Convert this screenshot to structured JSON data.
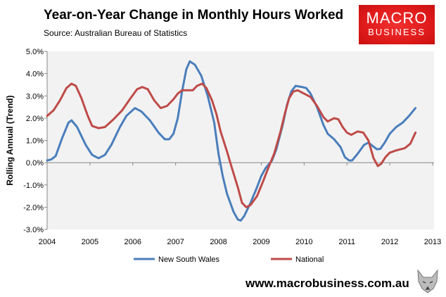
{
  "header": {
    "title": "Year-on-Year  Change in Monthly Hours Worked",
    "source": "Source: Australian Bureau of Statistics"
  },
  "logo": {
    "line1": "MACRO",
    "line2": "BUSINESS",
    "color": "#e01b1b"
  },
  "footer": {
    "url": "www.macrobusiness.com.au",
    "icon": "wolf-logo-icon"
  },
  "chart_data": {
    "type": "line",
    "title": "Year-on-Year  Change in Monthly Hours Worked",
    "xlabel": "",
    "ylabel": "Rolling Annual (Trend)",
    "xlim": [
      2004,
      2013
    ],
    "ylim": [
      -3,
      5
    ],
    "xticks": [
      "2004",
      "2005",
      "2006",
      "2007",
      "2008",
      "2009",
      "2010",
      "2011",
      "2012",
      "2013"
    ],
    "yticks": [
      "-3.0%",
      "-2.0%",
      "-1.0%",
      "0.0%",
      "1.0%",
      "2.0%",
      "3.0%",
      "4.0%",
      "5.0%"
    ],
    "grid": false,
    "legend": "bottom",
    "series": [
      {
        "name": "New South Wales",
        "color": "#4a7ebb",
        "points": [
          [
            2004.0,
            0.1
          ],
          [
            2004.1,
            0.15
          ],
          [
            2004.2,
            0.3
          ],
          [
            2004.35,
            1.1
          ],
          [
            2004.5,
            1.8
          ],
          [
            2004.57,
            1.9
          ],
          [
            2004.7,
            1.6
          ],
          [
            2004.9,
            0.8
          ],
          [
            2005.05,
            0.35
          ],
          [
            2005.2,
            0.2
          ],
          [
            2005.35,
            0.35
          ],
          [
            2005.5,
            0.8
          ],
          [
            2005.7,
            1.6
          ],
          [
            2005.85,
            2.1
          ],
          [
            2006.05,
            2.45
          ],
          [
            2006.2,
            2.3
          ],
          [
            2006.4,
            1.9
          ],
          [
            2006.6,
            1.35
          ],
          [
            2006.75,
            1.05
          ],
          [
            2006.85,
            1.05
          ],
          [
            2006.95,
            1.3
          ],
          [
            2007.05,
            2.0
          ],
          [
            2007.15,
            3.2
          ],
          [
            2007.25,
            4.2
          ],
          [
            2007.33,
            4.55
          ],
          [
            2007.45,
            4.4
          ],
          [
            2007.6,
            3.9
          ],
          [
            2007.75,
            3.0
          ],
          [
            2007.9,
            1.8
          ],
          [
            2008.0,
            0.4
          ],
          [
            2008.1,
            -0.6
          ],
          [
            2008.2,
            -1.4
          ],
          [
            2008.35,
            -2.2
          ],
          [
            2008.45,
            -2.55
          ],
          [
            2008.52,
            -2.6
          ],
          [
            2008.6,
            -2.4
          ],
          [
            2008.75,
            -1.8
          ],
          [
            2008.9,
            -1.1
          ],
          [
            2009.0,
            -0.6
          ],
          [
            2009.1,
            -0.25
          ],
          [
            2009.25,
            0.1
          ],
          [
            2009.35,
            0.6
          ],
          [
            2009.5,
            1.7
          ],
          [
            2009.6,
            2.6
          ],
          [
            2009.7,
            3.2
          ],
          [
            2009.8,
            3.45
          ],
          [
            2009.95,
            3.4
          ],
          [
            2010.05,
            3.35
          ],
          [
            2010.15,
            3.1
          ],
          [
            2010.3,
            2.5
          ],
          [
            2010.45,
            1.7
          ],
          [
            2010.55,
            1.3
          ],
          [
            2010.7,
            1.05
          ],
          [
            2010.85,
            0.7
          ],
          [
            2010.95,
            0.25
          ],
          [
            2011.05,
            0.1
          ],
          [
            2011.12,
            0.1
          ],
          [
            2011.25,
            0.4
          ],
          [
            2011.4,
            0.8
          ],
          [
            2011.5,
            0.9
          ],
          [
            2011.6,
            0.75
          ],
          [
            2011.7,
            0.6
          ],
          [
            2011.78,
            0.62
          ],
          [
            2011.88,
            0.9
          ],
          [
            2012.0,
            1.3
          ],
          [
            2012.15,
            1.6
          ],
          [
            2012.3,
            1.8
          ],
          [
            2012.45,
            2.1
          ],
          [
            2012.6,
            2.45
          ]
        ]
      },
      {
        "name": "National",
        "color": "#be4b48",
        "points": [
          [
            2004.0,
            2.1
          ],
          [
            2004.15,
            2.35
          ],
          [
            2004.3,
            2.8
          ],
          [
            2004.45,
            3.35
          ],
          [
            2004.57,
            3.55
          ],
          [
            2004.67,
            3.45
          ],
          [
            2004.8,
            2.9
          ],
          [
            2004.95,
            2.1
          ],
          [
            2005.05,
            1.65
          ],
          [
            2005.2,
            1.55
          ],
          [
            2005.35,
            1.6
          ],
          [
            2005.55,
            1.95
          ],
          [
            2005.75,
            2.35
          ],
          [
            2005.95,
            2.9
          ],
          [
            2006.1,
            3.3
          ],
          [
            2006.22,
            3.4
          ],
          [
            2006.35,
            3.3
          ],
          [
            2006.5,
            2.8
          ],
          [
            2006.65,
            2.45
          ],
          [
            2006.8,
            2.55
          ],
          [
            2006.95,
            2.85
          ],
          [
            2007.05,
            3.1
          ],
          [
            2007.15,
            3.25
          ],
          [
            2007.4,
            3.25
          ],
          [
            2007.5,
            3.45
          ],
          [
            2007.62,
            3.55
          ],
          [
            2007.72,
            3.35
          ],
          [
            2007.85,
            2.8
          ],
          [
            2007.95,
            2.2
          ],
          [
            2008.05,
            1.4
          ],
          [
            2008.2,
            0.5
          ],
          [
            2008.3,
            -0.15
          ],
          [
            2008.45,
            -1.1
          ],
          [
            2008.55,
            -1.8
          ],
          [
            2008.65,
            -2.0
          ],
          [
            2008.75,
            -1.9
          ],
          [
            2008.9,
            -1.5
          ],
          [
            2009.05,
            -0.8
          ],
          [
            2009.15,
            -0.3
          ],
          [
            2009.3,
            0.4
          ],
          [
            2009.45,
            1.4
          ],
          [
            2009.55,
            2.2
          ],
          [
            2009.65,
            2.9
          ],
          [
            2009.75,
            3.2
          ],
          [
            2009.85,
            3.25
          ],
          [
            2010.0,
            3.1
          ],
          [
            2010.15,
            2.95
          ],
          [
            2010.3,
            2.55
          ],
          [
            2010.45,
            2.05
          ],
          [
            2010.55,
            1.85
          ],
          [
            2010.7,
            2.0
          ],
          [
            2010.8,
            1.95
          ],
          [
            2010.9,
            1.6
          ],
          [
            2011.0,
            1.35
          ],
          [
            2011.1,
            1.25
          ],
          [
            2011.25,
            1.4
          ],
          [
            2011.38,
            1.35
          ],
          [
            2011.5,
            1.0
          ],
          [
            2011.62,
            0.2
          ],
          [
            2011.72,
            -0.15
          ],
          [
            2011.8,
            -0.05
          ],
          [
            2011.9,
            0.25
          ],
          [
            2012.0,
            0.45
          ],
          [
            2012.15,
            0.55
          ],
          [
            2012.35,
            0.65
          ],
          [
            2012.48,
            0.85
          ],
          [
            2012.6,
            1.35
          ]
        ]
      }
    ]
  }
}
